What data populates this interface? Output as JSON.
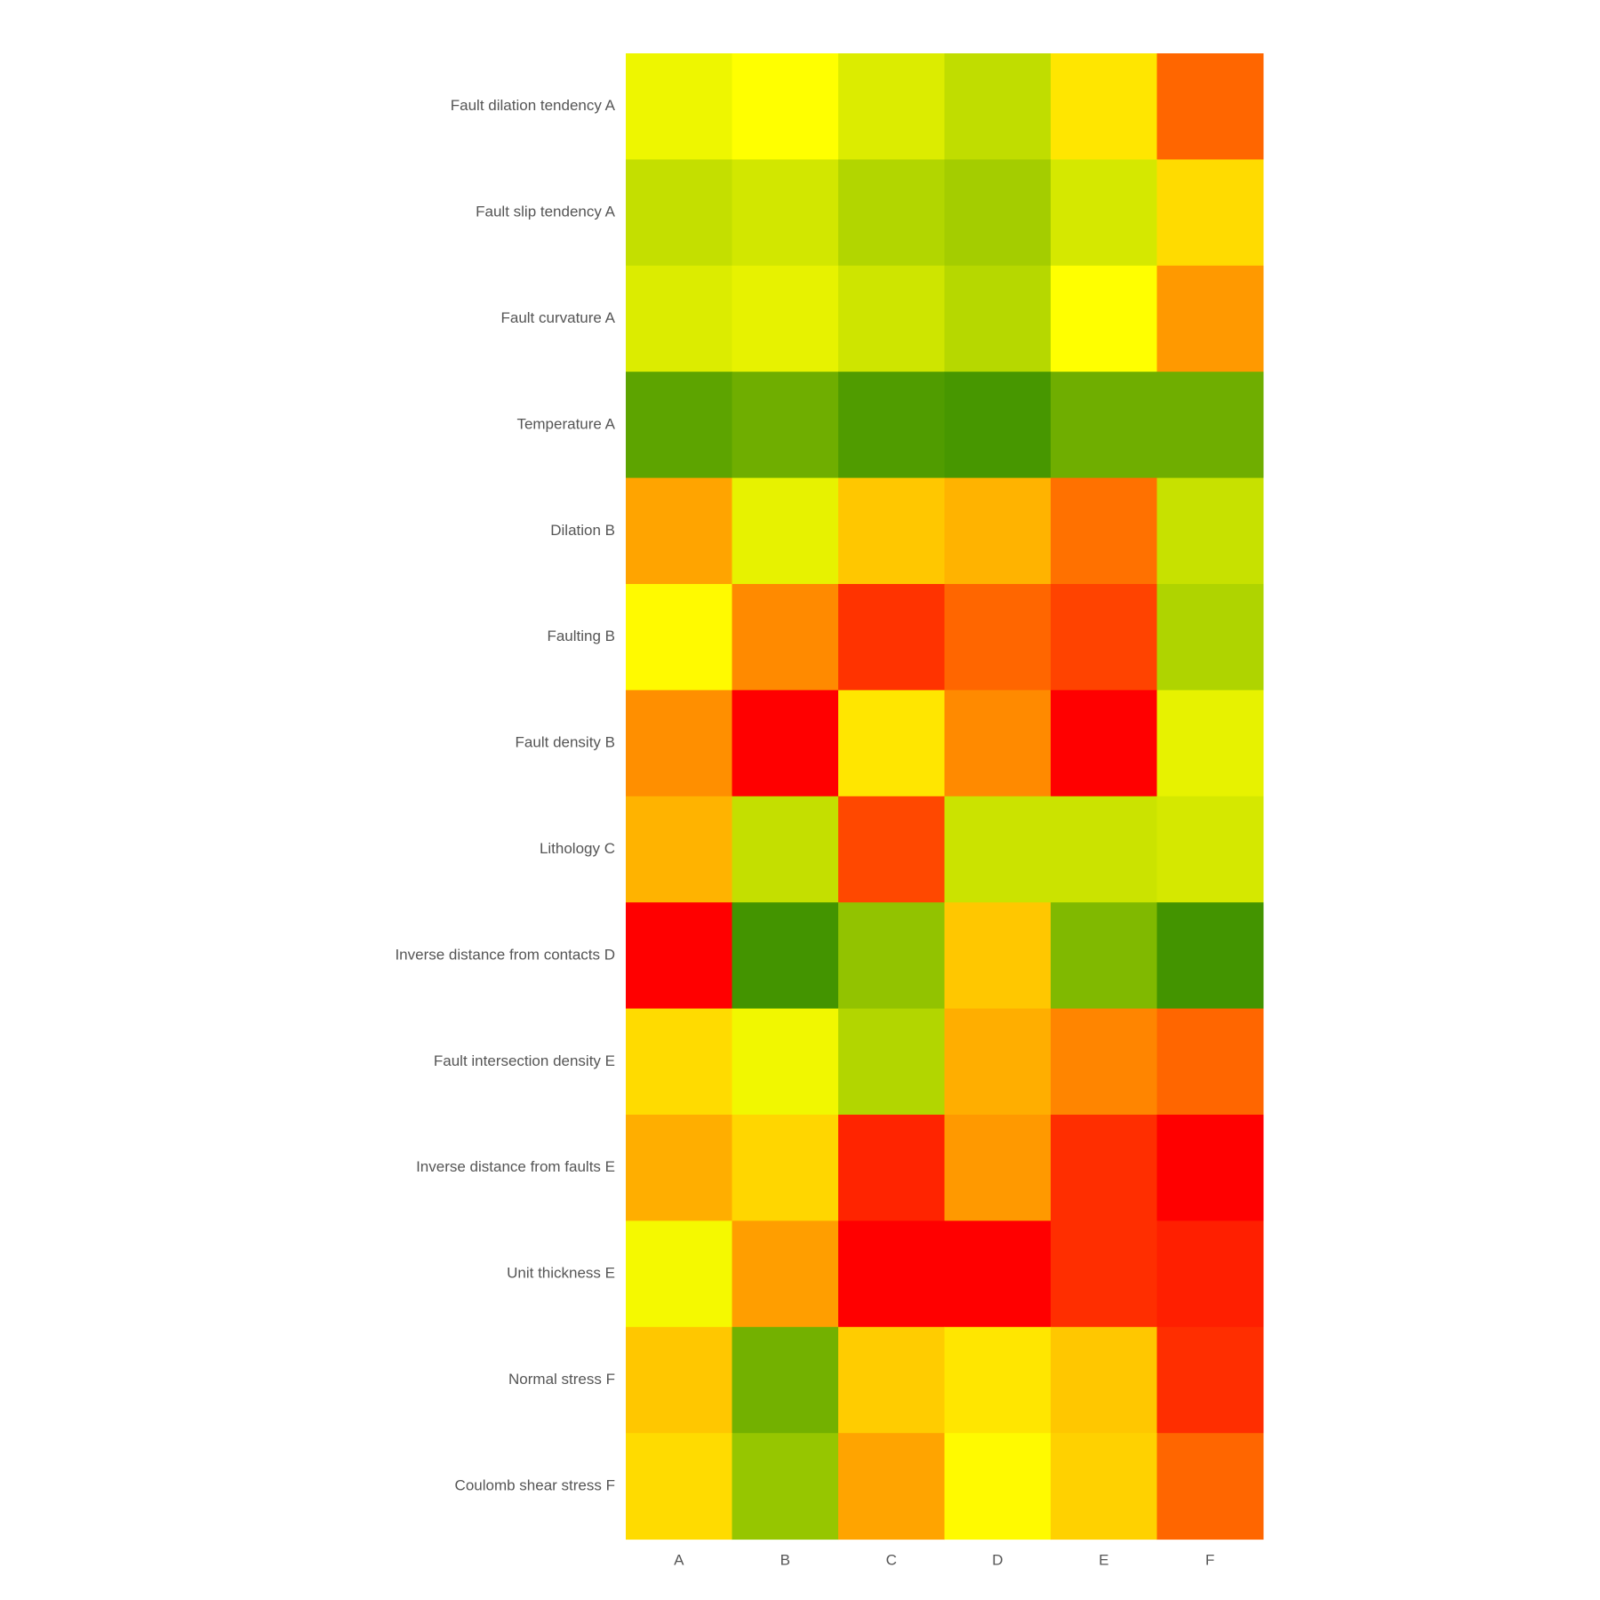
{
  "chart_data": {
    "type": "heatmap",
    "title": "",
    "xlabel": "",
    "ylabel": "",
    "categories": [
      "A",
      "B",
      "C",
      "D",
      "E",
      "F"
    ],
    "rows": [
      "Fault dilation tendency A",
      "Fault slip tendency A",
      "Fault curvature A",
      "Temperature A",
      "Dilation B",
      "Faulting B",
      "Fault density B",
      "Lithology C",
      "Inverse distance from contacts D",
      "Fault intersection density E",
      "Inverse distance from faults E",
      "Unit thickness E",
      "Normal stress F",
      "Coulomb shear stress F"
    ],
    "colorscale": [
      "#ff0000",
      "#ff8000",
      "#ffff00",
      "#a8d000",
      "#3a8f00"
    ],
    "values": [
      [
        0.55,
        0.5,
        0.6,
        0.68,
        0.45,
        0.2
      ],
      [
        0.67,
        0.63,
        0.72,
        0.76,
        0.62,
        0.43
      ],
      [
        0.6,
        0.57,
        0.64,
        0.71,
        0.5,
        0.3
      ],
      [
        0.92,
        0.88,
        0.95,
        0.97,
        0.88,
        0.88
      ],
      [
        0.32,
        0.57,
        0.39,
        0.35,
        0.22,
        0.66
      ],
      [
        0.49,
        0.27,
        0.1,
        0.2,
        0.13,
        0.73
      ],
      [
        0.28,
        0.0,
        0.45,
        0.27,
        0.0,
        0.57
      ],
      [
        0.35,
        0.67,
        0.14,
        0.65,
        0.65,
        0.62
      ],
      [
        0.0,
        0.98,
        0.8,
        0.39,
        0.84,
        0.98
      ],
      [
        0.43,
        0.54,
        0.72,
        0.34,
        0.26,
        0.2
      ],
      [
        0.34,
        0.42,
        0.07,
        0.3,
        0.09,
        0.0
      ],
      [
        0.53,
        0.31,
        0.0,
        0.0,
        0.09,
        0.06
      ],
      [
        0.39,
        0.87,
        0.4,
        0.45,
        0.39,
        0.09
      ],
      [
        0.43,
        0.79,
        0.32,
        0.49,
        0.41,
        0.2
      ]
    ]
  }
}
